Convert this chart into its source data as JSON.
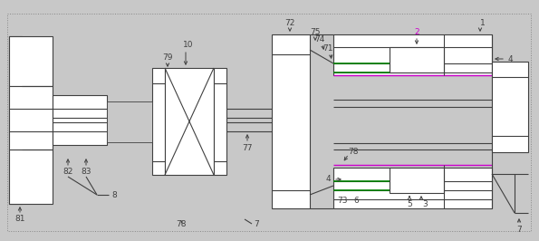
{
  "bg_color": "#c8c8c8",
  "line_color": "#404040",
  "green_color": "#008000",
  "magenta_color": "#cc00cc",
  "white": "#ffffff",
  "fig_width": 5.95,
  "fig_height": 2.66,
  "dpi": 100
}
